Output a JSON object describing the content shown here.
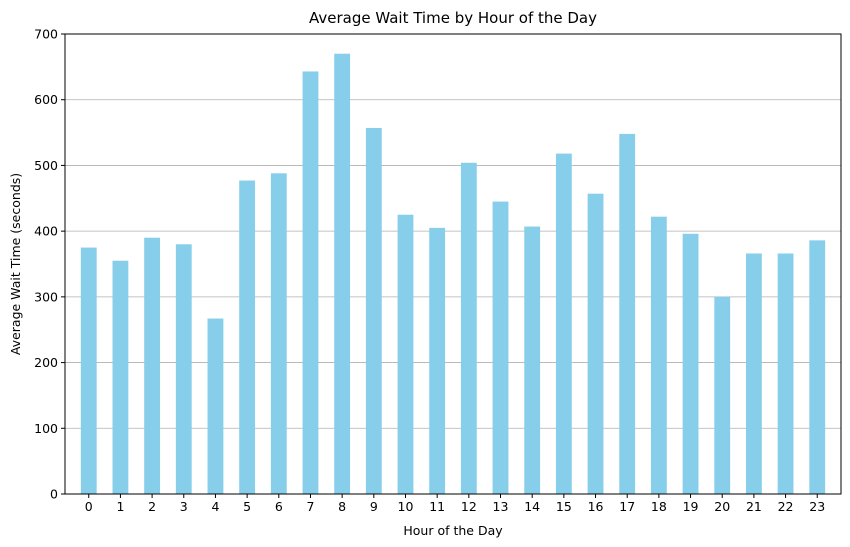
{
  "chart_data": {
    "type": "bar",
    "title": "Average Wait Time by Hour of the Day",
    "xlabel": "Hour of the Day",
    "ylabel": "Average Wait Time (seconds)",
    "categories": [
      "0",
      "1",
      "2",
      "3",
      "4",
      "5",
      "6",
      "7",
      "8",
      "9",
      "10",
      "11",
      "12",
      "13",
      "14",
      "15",
      "16",
      "17",
      "18",
      "19",
      "20",
      "21",
      "22",
      "23"
    ],
    "values": [
      375,
      355,
      390,
      380,
      267,
      477,
      488,
      643,
      670,
      557,
      425,
      405,
      504,
      445,
      407,
      518,
      457,
      548,
      422,
      396,
      300,
      366,
      366,
      386
    ],
    "ylim": [
      0,
      700
    ],
    "yticks": [
      0,
      100,
      200,
      300,
      400,
      500,
      600,
      700
    ],
    "grid": "y-axis",
    "bar_color": "#87CEEB",
    "legend": "none"
  }
}
